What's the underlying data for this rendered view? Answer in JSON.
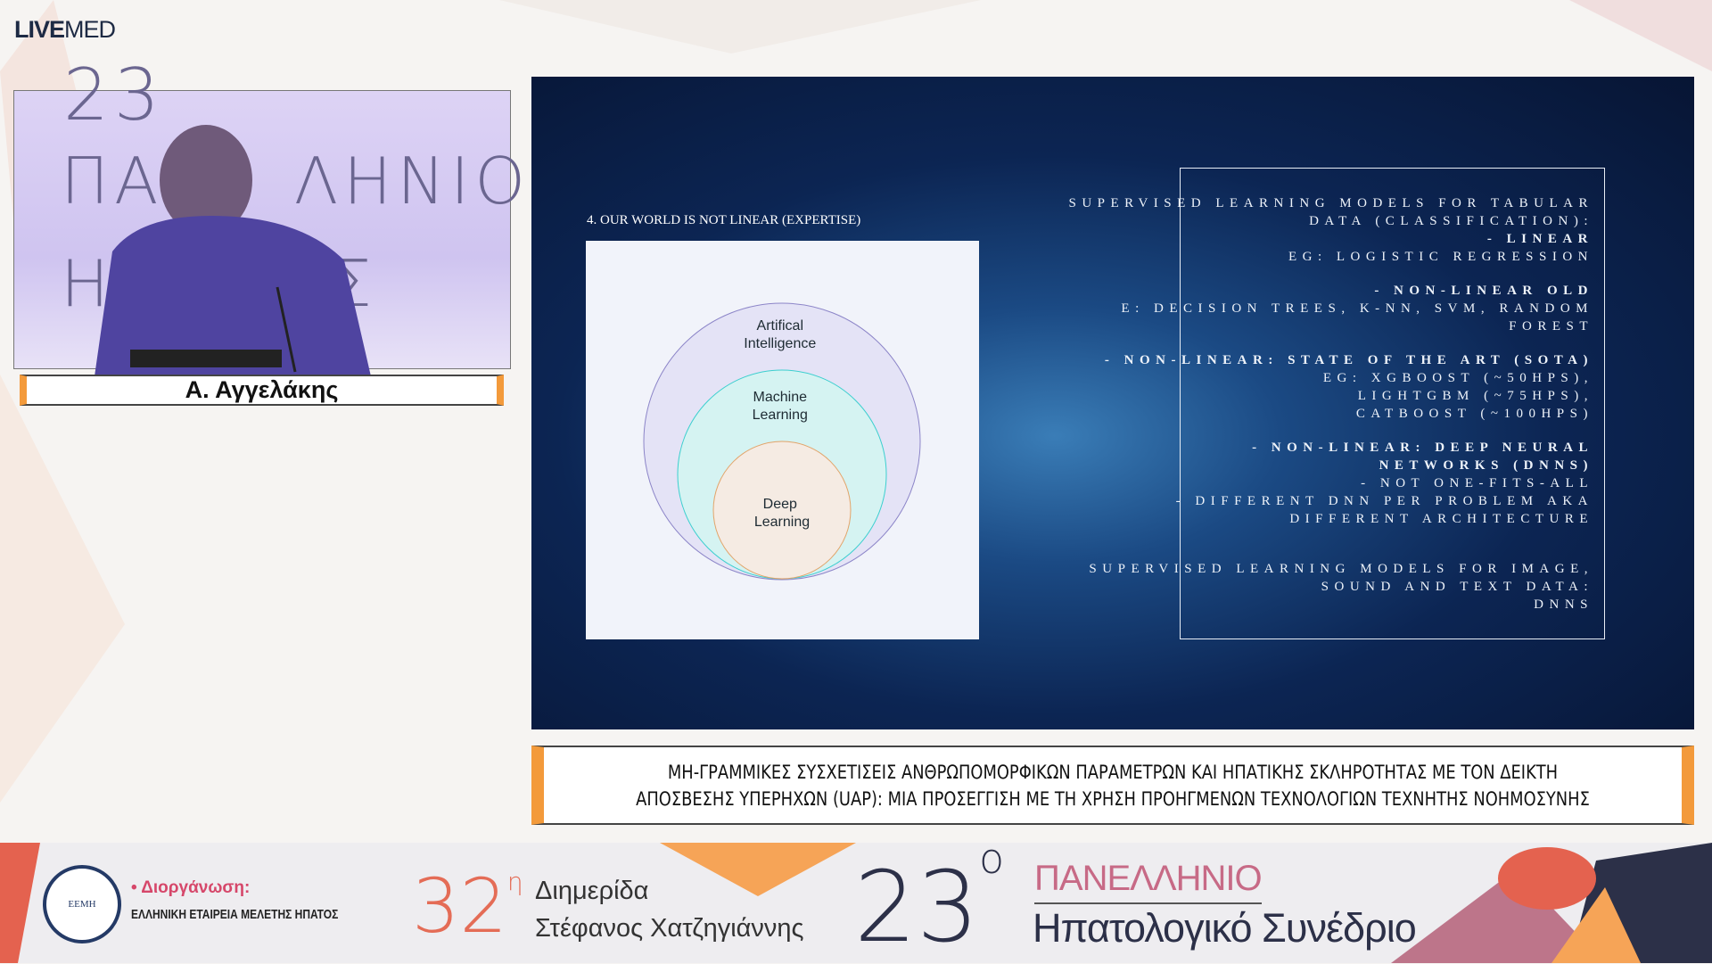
{
  "brand": {
    "logo_bold": "LIVE",
    "logo_light": "MED"
  },
  "speaker": {
    "name": "Α. Αγγελάκης",
    "backdrop_text": [
      "23",
      "ΠΑΝ   ΛΗΝΙΟ",
      "Η    κό Σ"
    ]
  },
  "slide": {
    "heading": "4. OUR WORLD IS NOT LINEAR (EXPERTISE)",
    "diagram": {
      "outer": "Artifical Intelligence",
      "middle": "Machine Learning",
      "inner": "Deep Learning",
      "colors": {
        "outer": "#e4e3f6",
        "middle": "#d5f3f2",
        "inner": "#f5ebe3"
      }
    },
    "lines": [
      {
        "text": "SUPERVISED LEARNING MODELS FOR TABULAR",
        "bold": false
      },
      {
        "text": "DATA (CLASSIFICATION):",
        "bold": false
      },
      {
        "text": "- LINEAR",
        "bold": true
      },
      {
        "text": "EG: LOGISTIC REGRESSION",
        "bold": false
      },
      {
        "text": "",
        "bold": false
      },
      {
        "text": "- NON-LINEAR OLD",
        "bold": true
      },
      {
        "text": "E: DECISION TREES, K-NN, SVM, RANDOM",
        "bold": false
      },
      {
        "text": "FOREST",
        "bold": false
      },
      {
        "text": "",
        "bold": false
      },
      {
        "text": "- NON-LINEAR: STATE OF THE ART (SOTA)",
        "bold": true
      },
      {
        "text": "EG: XGBOOST (~50HPS),",
        "bold": false
      },
      {
        "text": "LIGHTGBM (~75HPS),",
        "bold": false
      },
      {
        "text": "CATBOOST (~100HPS)",
        "bold": false
      },
      {
        "text": "",
        "bold": false
      },
      {
        "text": "- NON-LINEAR: DEEP NEURAL",
        "bold": true
      },
      {
        "text": "NETWORKS (DNNS)",
        "bold": true
      },
      {
        "text": "- NOT ONE-FITS-ALL",
        "bold": false
      },
      {
        "text": "- DIFFERENT DNN PER PROBLEM AKA",
        "bold": false
      },
      {
        "text": "DIFFERENT ARCHITECTURE",
        "bold": false
      },
      {
        "text": "",
        "bold": false
      },
      {
        "text": "",
        "bold": false
      },
      {
        "text": "SUPERVISED LEARNING MODELS FOR IMAGE,",
        "bold": false
      },
      {
        "text": "SOUND AND TEXT DATA:",
        "bold": false
      },
      {
        "text": "DNNS",
        "bold": false
      }
    ]
  },
  "talk_title": {
    "line1": "ΜΗ-ΓΡΑΜΜΙΚΕΣ ΣΥΣΧΕΤΙΣΕΙΣ ΑΝΘΡΩΠΟΜΟΡΦΙΚΩΝ ΠΑΡΑΜΕΤΡΩΝ ΚΑΙ ΗΠΑΤΙΚΗΣ ΣΚΛΗΡΟΤΗΤΑΣ ΜΕ ΤΟΝ ΔΕΙΚΤΗ",
    "line2": "ΑΠΟΣΒΕΣΗΣ ΥΠΕΡΗΧΩΝ (UAP): ΜΙΑ ΠΡΟΣΕΓΓΙΣΗ ΜΕ ΤΗ ΧΡΗΣΗ ΠΡΟΗΓΜΕΝΩΝ ΤΕΧΝΟΛΟΓΙΩΝ ΤΕΧΝΗΤΗΣ ΝΟΗΜΟΣΥΝΗΣ"
  },
  "banner": {
    "org_logo": "ΕΕΜΗ",
    "org_label": "• Διοργάνωση:",
    "org_name": "ΕΛΛΗΝΙΚΗ ΕΤΑΙΡΕΙΑ ΜΕΛΕΤΗΣ ΗΠΑΤΟΣ",
    "num32": "32",
    "num32_sup": "η",
    "dimerida": "Διημερίδα",
    "dimerida_name": "Στέφανος Χατζηγιάννης",
    "num23": "23",
    "num23_sup": "ο",
    "panellinio": "ΠΑΝΕΛΛΗΝΙΟ",
    "congress": "Ηπατολογικό Συνέδριο"
  },
  "colors": {
    "accent_orange": "#f39a3b",
    "brand_navy": "#1d2a44",
    "pink": "#c76a86",
    "coral": "#e46c56"
  }
}
